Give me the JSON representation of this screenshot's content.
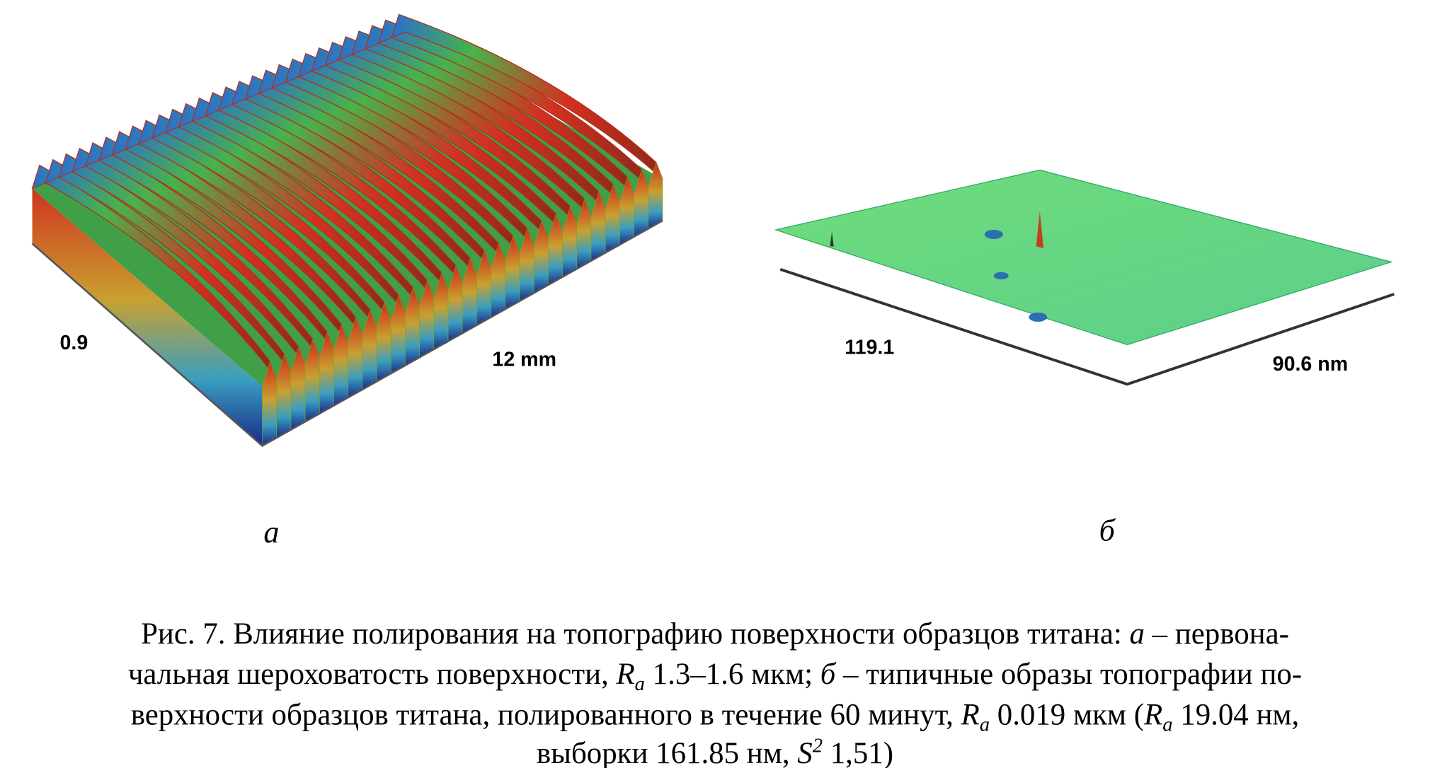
{
  "panels": [
    {
      "letter": "а",
      "labels": [
        "0.9",
        "12 mm"
      ]
    },
    {
      "letter": "б",
      "labels": [
        "119.1",
        "90.6 nm"
      ]
    }
  ],
  "caption": {
    "lines": [
      [
        "Рис. 7. Влияние полирования на топографию поверхности образцов титана: ",
        "а",
        " – первона-"
      ],
      [
        "чальная шероховатость поверхности, ",
        "R",
        "a",
        " 1.3–1.6 мкм; ",
        "б",
        " – типичные образы топографии по-"
      ],
      [
        "верхности образцов титана, полированного в течение 60 минут, ",
        "R",
        "a",
        " 0.019 мкм (",
        "R",
        "a",
        " 19.04 нм,"
      ],
      [
        "выборки 161.85 нм, ",
        "S",
        "2",
        " 1,51)"
      ]
    ]
  }
}
